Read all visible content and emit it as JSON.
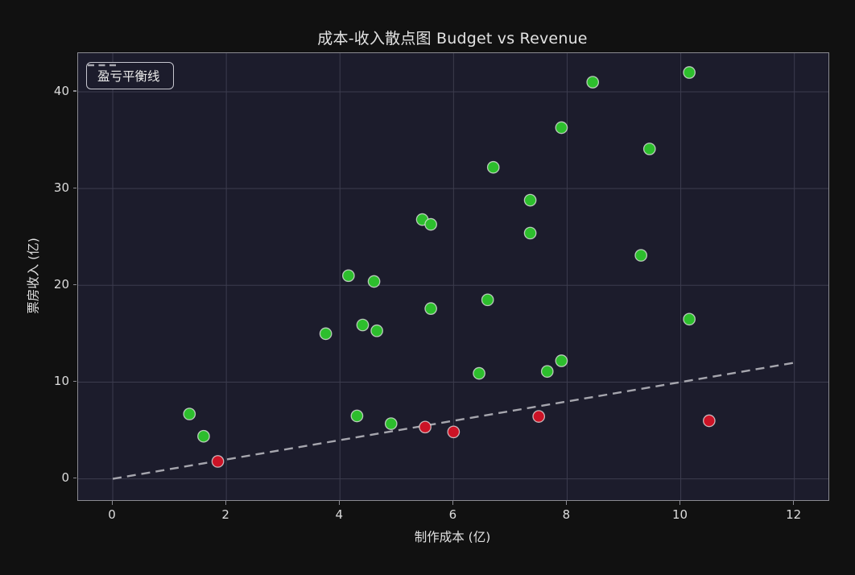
{
  "chart_data": {
    "type": "scatter",
    "title": "成本-收入散点图 Budget vs Revenue",
    "xlabel": "制作成本 (亿)",
    "ylabel": "票房收入 (亿)",
    "legend_label": "盈亏平衡线",
    "legend_position": "upper left",
    "grid": true,
    "xlim": [
      -0.61,
      12.6
    ],
    "ylim": [
      -2.2,
      44.0
    ],
    "x_ticks": [
      0,
      2,
      4,
      6,
      8,
      10,
      12
    ],
    "y_ticks": [
      0,
      10,
      20,
      30,
      40
    ],
    "breakeven_line": {
      "from": [
        0,
        0
      ],
      "to": [
        12,
        12
      ],
      "style": "dashed"
    },
    "series": [
      {
        "id": "profit",
        "marker": "circle",
        "color": "#2dbe2d",
        "points": [
          [
            1.35,
            6.7
          ],
          [
            1.6,
            4.4
          ],
          [
            3.75,
            15.0
          ],
          [
            4.15,
            21.0
          ],
          [
            4.3,
            6.5
          ],
          [
            4.4,
            15.9
          ],
          [
            4.6,
            20.4
          ],
          [
            4.65,
            15.3
          ],
          [
            4.9,
            5.7
          ],
          [
            5.45,
            26.8
          ],
          [
            5.6,
            26.3
          ],
          [
            5.6,
            17.6
          ],
          [
            6.45,
            10.9
          ],
          [
            6.6,
            18.5
          ],
          [
            6.7,
            32.2
          ],
          [
            7.35,
            28.8
          ],
          [
            7.35,
            25.4
          ],
          [
            7.65,
            11.1
          ],
          [
            7.9,
            36.3
          ],
          [
            7.9,
            12.2
          ],
          [
            8.45,
            41.0
          ],
          [
            9.3,
            23.1
          ],
          [
            9.45,
            34.1
          ],
          [
            10.15,
            42.0
          ],
          [
            10.15,
            16.5
          ]
        ]
      },
      {
        "id": "loss",
        "marker": "circle",
        "color": "#cb1326",
        "points": [
          [
            1.85,
            1.8
          ],
          [
            5.5,
            5.35
          ],
          [
            6.0,
            4.85
          ],
          [
            7.5,
            6.45
          ],
          [
            10.5,
            6.0
          ]
        ]
      }
    ]
  },
  "colors": {
    "figure_background": "#111111",
    "axes_background": "#1c1c2c",
    "grid": "#3c3c4e",
    "spine": "#8b8b92",
    "text": "#e2e2e2",
    "tick_text": "#dcdcdc",
    "profit_point": "#2dbe2d",
    "loss_point": "#cb1326",
    "point_edge": "#e8e8e8",
    "breakeven_line": "#a6a6ae"
  }
}
